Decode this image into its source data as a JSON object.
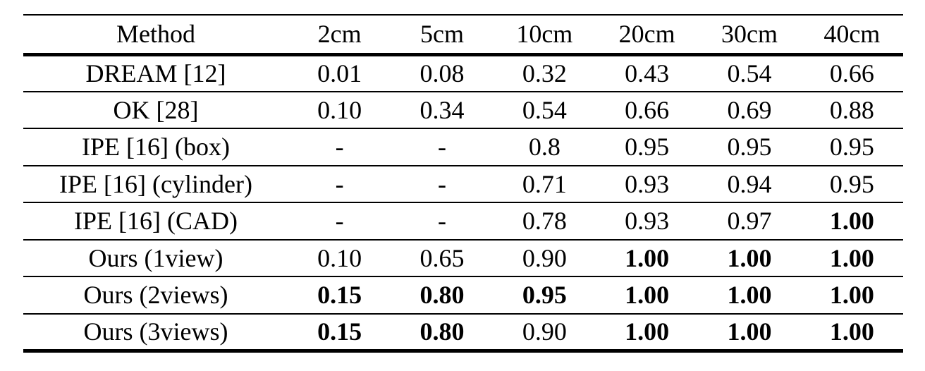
{
  "table": {
    "headers": [
      "Method",
      "2cm",
      "5cm",
      "10cm",
      "20cm",
      "30cm",
      "40cm"
    ],
    "rows": [
      {
        "method": "DREAM [12]",
        "values": [
          "0.01",
          "0.08",
          "0.32",
          "0.43",
          "0.54",
          "0.66"
        ],
        "bold": [
          false,
          false,
          false,
          false,
          false,
          false
        ]
      },
      {
        "method": "OK [28]",
        "values": [
          "0.10",
          "0.34",
          "0.54",
          "0.66",
          "0.69",
          "0.88"
        ],
        "bold": [
          false,
          false,
          false,
          false,
          false,
          false
        ]
      },
      {
        "method": "IPE [16] (box)",
        "values": [
          "-",
          "-",
          "0.8",
          "0.95",
          "0.95",
          "0.95"
        ],
        "bold": [
          false,
          false,
          false,
          false,
          false,
          false
        ]
      },
      {
        "method": "IPE [16] (cylinder)",
        "values": [
          "-",
          "-",
          "0.71",
          "0.93",
          "0.94",
          "0.95"
        ],
        "bold": [
          false,
          false,
          false,
          false,
          false,
          false
        ]
      },
      {
        "method": "IPE [16] (CAD)",
        "values": [
          "-",
          "-",
          "0.78",
          "0.93",
          "0.97",
          "1.00"
        ],
        "bold": [
          false,
          false,
          false,
          false,
          false,
          true
        ]
      },
      {
        "method": "Ours (1view)",
        "values": [
          "0.10",
          "0.65",
          "0.90",
          "1.00",
          "1.00",
          "1.00"
        ],
        "bold": [
          false,
          false,
          false,
          true,
          true,
          true
        ]
      },
      {
        "method": "Ours (2views)",
        "values": [
          "0.15",
          "0.80",
          "0.95",
          "1.00",
          "1.00",
          "1.00"
        ],
        "bold": [
          true,
          true,
          true,
          true,
          true,
          true
        ]
      },
      {
        "method": "Ours (3views)",
        "values": [
          "0.15",
          "0.80",
          "0.90",
          "1.00",
          "1.00",
          "1.00"
        ],
        "bold": [
          true,
          true,
          false,
          true,
          true,
          true
        ]
      }
    ]
  }
}
